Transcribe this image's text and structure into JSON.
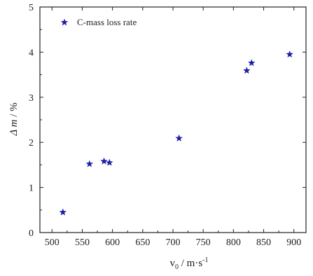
{
  "chart_data": {
    "type": "scatter",
    "title": "",
    "xlabel": {
      "main": "v",
      "subscript": "0",
      "unit": " / m·s",
      "superscript": "-1"
    },
    "ylabel": {
      "main": "Δ m",
      "unit": " / %"
    },
    "xlim": [
      480,
      920
    ],
    "ylim": [
      0,
      5
    ],
    "xticks": [
      500,
      550,
      600,
      650,
      700,
      750,
      800,
      850,
      900
    ],
    "yticks": [
      0,
      1,
      2,
      3,
      4,
      5
    ],
    "grid": false,
    "legend": {
      "placement": "top-left",
      "entries": [
        "C-mass loss rate"
      ]
    },
    "series": [
      {
        "name": "C-mass loss rate",
        "marker": "star",
        "color": "#1f1fa8",
        "points": [
          {
            "x": 518,
            "y": 0.45
          },
          {
            "x": 562,
            "y": 1.52
          },
          {
            "x": 586,
            "y": 1.58
          },
          {
            "x": 595,
            "y": 1.55
          },
          {
            "x": 710,
            "y": 2.09
          },
          {
            "x": 822,
            "y": 3.59
          },
          {
            "x": 830,
            "y": 3.76
          },
          {
            "x": 893,
            "y": 3.95
          }
        ]
      }
    ]
  }
}
